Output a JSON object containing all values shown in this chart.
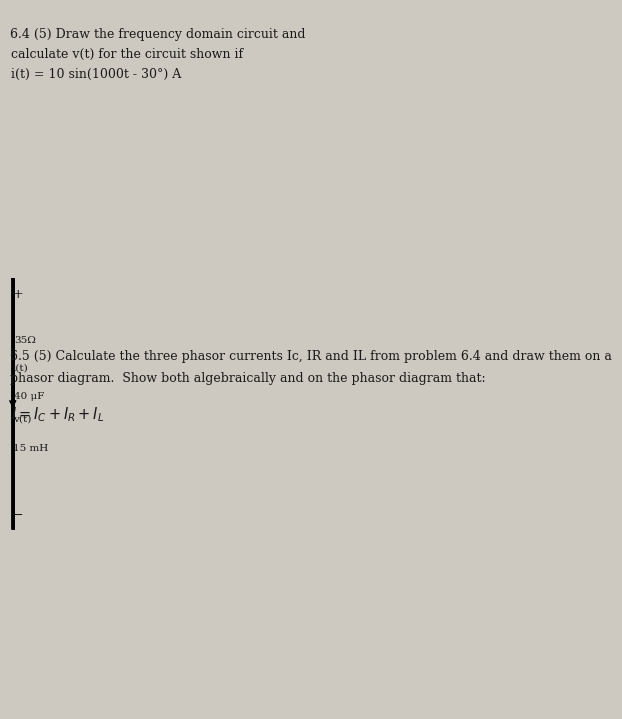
{
  "background_color": "#cdc8c0",
  "text_color": "#1a1a1a",
  "font_size_main": 9.0,
  "font_size_eq": 10.5,
  "title_line1": "6.4 (5) Draw the frequency domain circuit and",
  "title_line2": "calculate v(t) for the circuit shown if",
  "title_line3": "i(t) = 10 sin(1000t - 30°) A",
  "sec2_line1": "6.5 (5) Calculate the three phasor currents Ic, IR and IL from problem 6.4 and draw them on a",
  "sec2_line2": "phasor diagram.  Show both algebraically and on the phasor diagram that:",
  "resistor_label": "35Ω",
  "inductor_label": "15 mH",
  "capacitor_label": "40 μF"
}
